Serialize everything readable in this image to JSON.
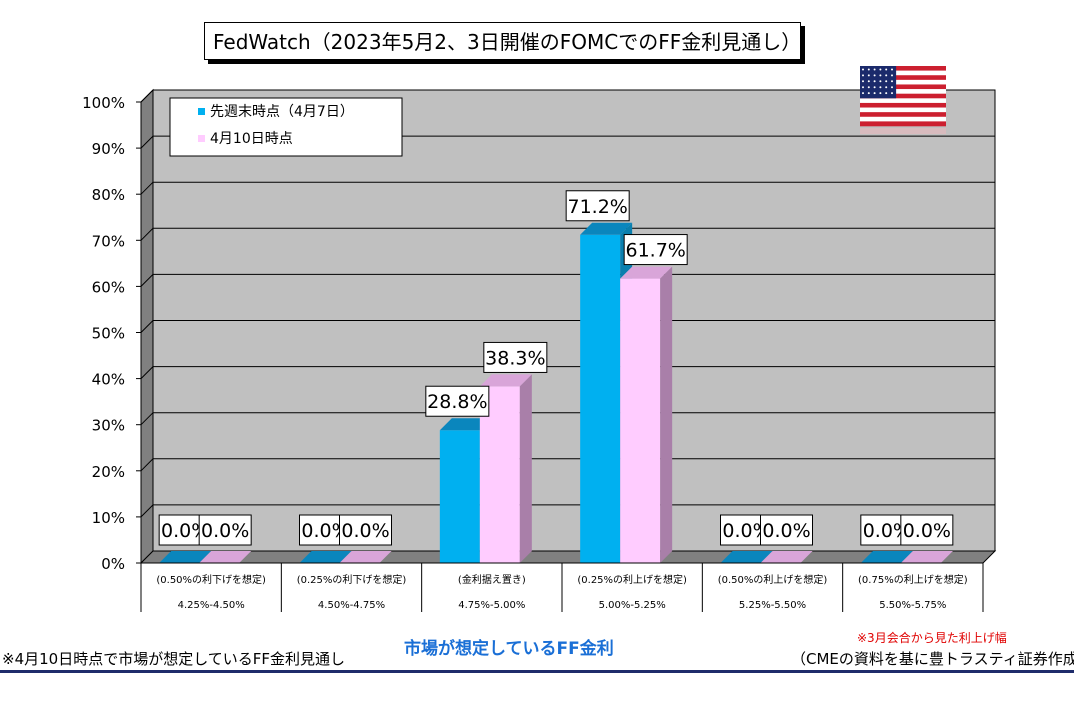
{
  "title": "FedWatch（2023年5月2、3日開催のFOMCでのFF金利見通し）",
  "chart_data": {
    "type": "bar",
    "title": "FedWatch（2023年5月2、3日開催のFOMCでのFF金利見通し）",
    "categories": [
      {
        "label": "(0.50%の利下げを想定)",
        "range": "4.25%-4.50%"
      },
      {
        "label": "(0.25%の利下げを想定)",
        "range": "4.50%-4.75%"
      },
      {
        "label": "(金利据え置き)",
        "range": "4.75%-5.00%"
      },
      {
        "label": "(0.25%の利上げを想定)",
        "range": "5.00%-5.25%"
      },
      {
        "label": "(0.50%の利上げを想定)",
        "range": "5.25%-5.50%"
      },
      {
        "label": "(0.75%の利上げを想定)",
        "range": "5.50%-5.75%"
      }
    ],
    "series": [
      {
        "name": "先週末時点（4月7日）",
        "color": "#00b0f0",
        "values": [
          0.0,
          0.0,
          28.8,
          71.2,
          0.0,
          0.0
        ],
        "value_labels": [
          "0.0%",
          "0.0%",
          "28.8%",
          "71.2%",
          "0.0%",
          "0.0%"
        ]
      },
      {
        "name": "4月10日時点",
        "color": "#ffccff",
        "values": [
          0.0,
          0.0,
          38.3,
          61.7,
          0.0,
          0.0
        ],
        "value_labels": [
          "0.0%",
          "0.0%",
          "38.3%",
          "61.7%",
          "0.0%",
          "0.0%"
        ]
      }
    ],
    "yticks": [
      "0%",
      "10%",
      "20%",
      "30%",
      "40%",
      "50%",
      "60%",
      "70%",
      "80%",
      "90%",
      "100%"
    ],
    "ylim": [
      0,
      100
    ],
    "xlabel": "市場が想定しているFF金利",
    "grid": true,
    "legend": "top-left",
    "background_color": "#c0c0c0"
  },
  "notes": {
    "left": "※4月10日時点で市場が想定しているFF金利見通し",
    "red": "※3月会合から見た利上げ幅",
    "source": "（CMEの資料を基に豊トラスティ証券作成）"
  },
  "flag": {
    "name": "us-flag-icon"
  }
}
